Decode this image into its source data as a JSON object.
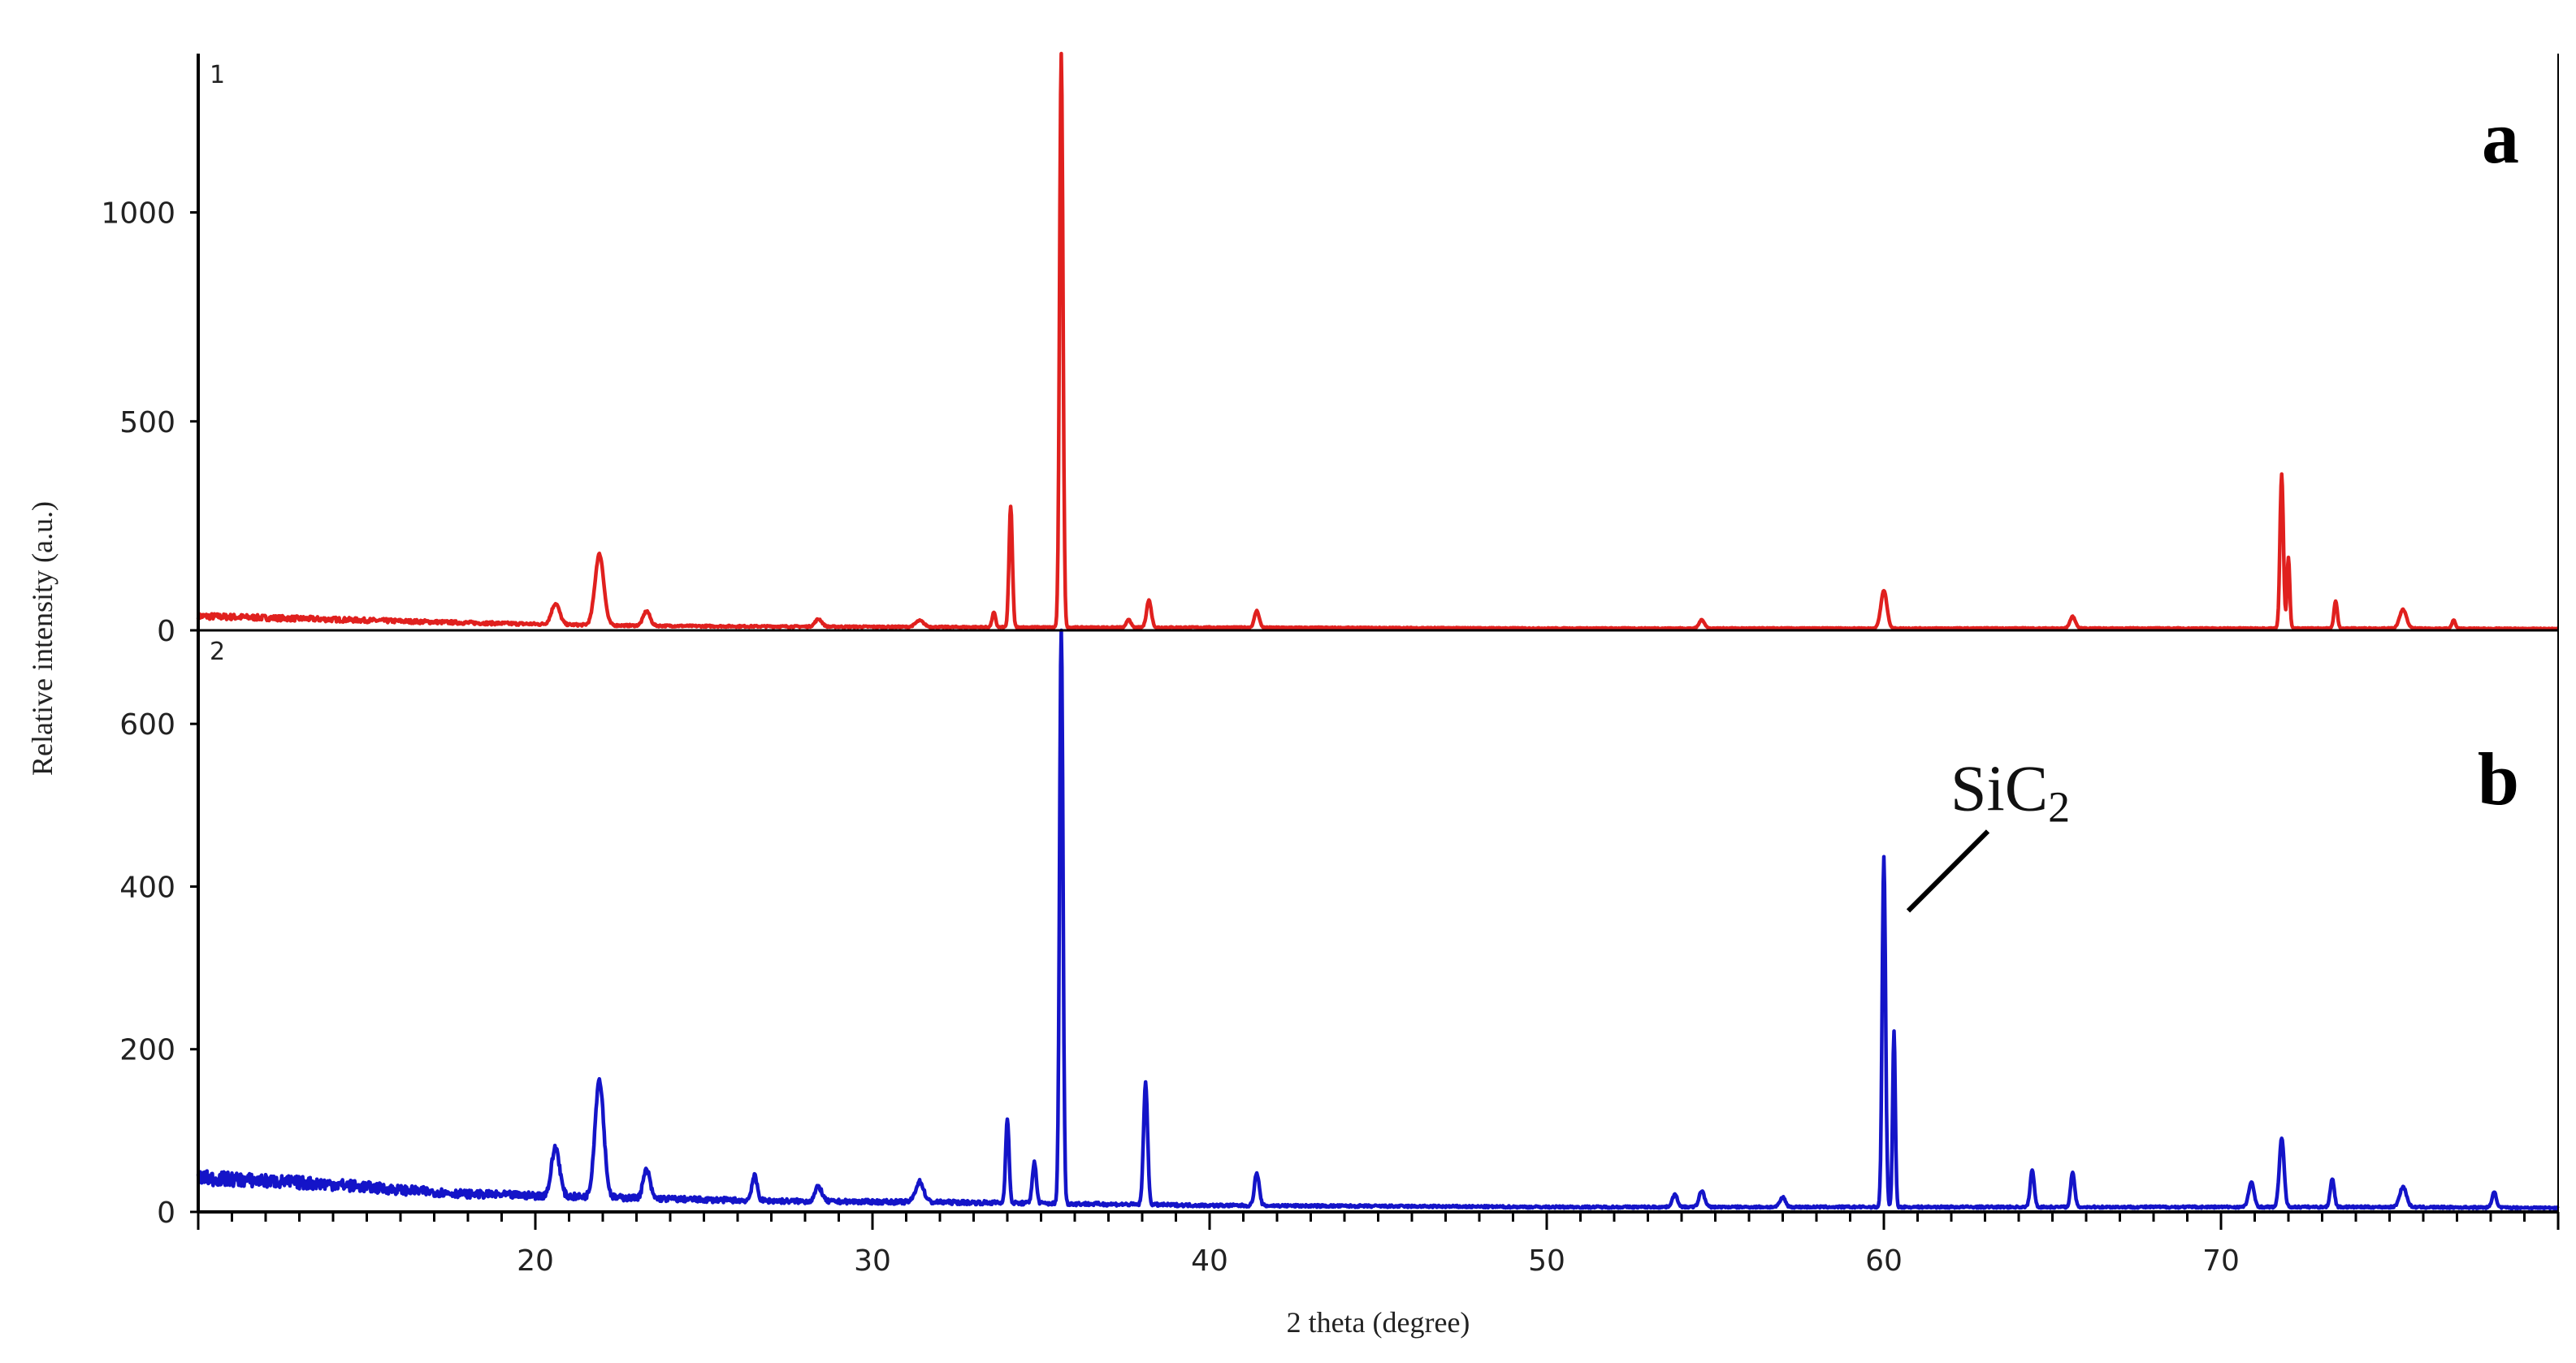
{
  "chart_data": {
    "type": "line",
    "xlabel": "2 theta (degree)",
    "ylabel": "Relative intensity (a.u.)",
    "xlim": [
      10,
      80
    ],
    "x_ticks": [
      20,
      30,
      40,
      50,
      60,
      70
    ],
    "grid": false,
    "legend": "none",
    "panels": [
      {
        "number": "1",
        "letter": "a",
        "color": "#e0201e",
        "ylim": [
          0,
          1380
        ],
        "y_ticks": [
          0,
          500,
          1000
        ],
        "baseline": [
          [
            10,
            34
          ],
          [
            12,
            30
          ],
          [
            14,
            26
          ],
          [
            16,
            22
          ],
          [
            18,
            18
          ],
          [
            20,
            15
          ],
          [
            22,
            12
          ],
          [
            25,
            10
          ],
          [
            28,
            9
          ],
          [
            32,
            8
          ],
          [
            36,
            7
          ],
          [
            40,
            7
          ],
          [
            45,
            6
          ],
          [
            50,
            5
          ],
          [
            55,
            5
          ],
          [
            60,
            5
          ],
          [
            65,
            5
          ],
          [
            70,
            5
          ],
          [
            75,
            5
          ],
          [
            80,
            4
          ]
        ],
        "peaks": [
          {
            "x": 20.6,
            "y": 50,
            "width": 0.12
          },
          {
            "x": 21.9,
            "y": 170,
            "width": 0.13
          },
          {
            "x": 23.3,
            "y": 35,
            "width": 0.1
          },
          {
            "x": 28.4,
            "y": 18,
            "width": 0.1
          },
          {
            "x": 31.4,
            "y": 15,
            "width": 0.12
          },
          {
            "x": 33.6,
            "y": 35,
            "width": 0.05
          },
          {
            "x": 34.1,
            "y": 290,
            "width": 0.05
          },
          {
            "x": 35.6,
            "y": 1380,
            "width": 0.05
          },
          {
            "x": 37.6,
            "y": 20,
            "width": 0.06
          },
          {
            "x": 38.2,
            "y": 65,
            "width": 0.07
          },
          {
            "x": 41.4,
            "y": 40,
            "width": 0.07
          },
          {
            "x": 54.6,
            "y": 20,
            "width": 0.08
          },
          {
            "x": 60.0,
            "y": 90,
            "width": 0.09
          },
          {
            "x": 65.6,
            "y": 28,
            "width": 0.08
          },
          {
            "x": 71.8,
            "y": 370,
            "width": 0.05
          },
          {
            "x": 72.0,
            "y": 170,
            "width": 0.04
          },
          {
            "x": 73.4,
            "y": 65,
            "width": 0.05
          },
          {
            "x": 75.4,
            "y": 45,
            "width": 0.1
          },
          {
            "x": 76.9,
            "y": 20,
            "width": 0.05
          }
        ]
      },
      {
        "number": "2",
        "letter": "b",
        "color": "#1414c8",
        "ylim": [
          0,
          715
        ],
        "y_ticks": [
          0,
          200,
          400,
          600
        ],
        "baseline": [
          [
            10,
            42
          ],
          [
            12,
            38
          ],
          [
            14,
            34
          ],
          [
            16,
            27
          ],
          [
            18,
            22
          ],
          [
            20,
            20
          ],
          [
            22,
            18
          ],
          [
            25,
            15
          ],
          [
            28,
            13
          ],
          [
            32,
            12
          ],
          [
            36,
            10
          ],
          [
            40,
            8
          ],
          [
            45,
            7
          ],
          [
            50,
            6
          ],
          [
            55,
            6
          ],
          [
            60,
            6
          ],
          [
            65,
            6
          ],
          [
            70,
            6
          ],
          [
            75,
            6
          ],
          [
            80,
            5
          ]
        ],
        "peaks": [
          {
            "x": 20.6,
            "y": 60,
            "width": 0.12
          },
          {
            "x": 21.9,
            "y": 145,
            "width": 0.13
          },
          {
            "x": 23.3,
            "y": 35,
            "width": 0.1
          },
          {
            "x": 26.5,
            "y": 30,
            "width": 0.08
          },
          {
            "x": 28.4,
            "y": 18,
            "width": 0.1
          },
          {
            "x": 31.4,
            "y": 25,
            "width": 0.12
          },
          {
            "x": 34.0,
            "y": 105,
            "width": 0.05
          },
          {
            "x": 34.8,
            "y": 50,
            "width": 0.06
          },
          {
            "x": 35.6,
            "y": 715,
            "width": 0.05
          },
          {
            "x": 38.1,
            "y": 150,
            "width": 0.06
          },
          {
            "x": 41.4,
            "y": 40,
            "width": 0.07
          },
          {
            "x": 53.8,
            "y": 15,
            "width": 0.08
          },
          {
            "x": 54.6,
            "y": 20,
            "width": 0.08
          },
          {
            "x": 57.0,
            "y": 12,
            "width": 0.08
          },
          {
            "x": 60.0,
            "y": 430,
            "width": 0.05
          },
          {
            "x": 60.3,
            "y": 215,
            "width": 0.04
          },
          {
            "x": 64.4,
            "y": 45,
            "width": 0.06
          },
          {
            "x": 65.6,
            "y": 42,
            "width": 0.06
          },
          {
            "x": 70.9,
            "y": 30,
            "width": 0.08
          },
          {
            "x": 71.8,
            "y": 85,
            "width": 0.07
          },
          {
            "x": 73.3,
            "y": 35,
            "width": 0.06
          },
          {
            "x": 75.4,
            "y": 25,
            "width": 0.1
          },
          {
            "x": 78.1,
            "y": 20,
            "width": 0.06
          }
        ],
        "annotation": {
          "base": "SiC",
          "sub": "2",
          "x": 60.0,
          "y": 430
        }
      }
    ]
  }
}
